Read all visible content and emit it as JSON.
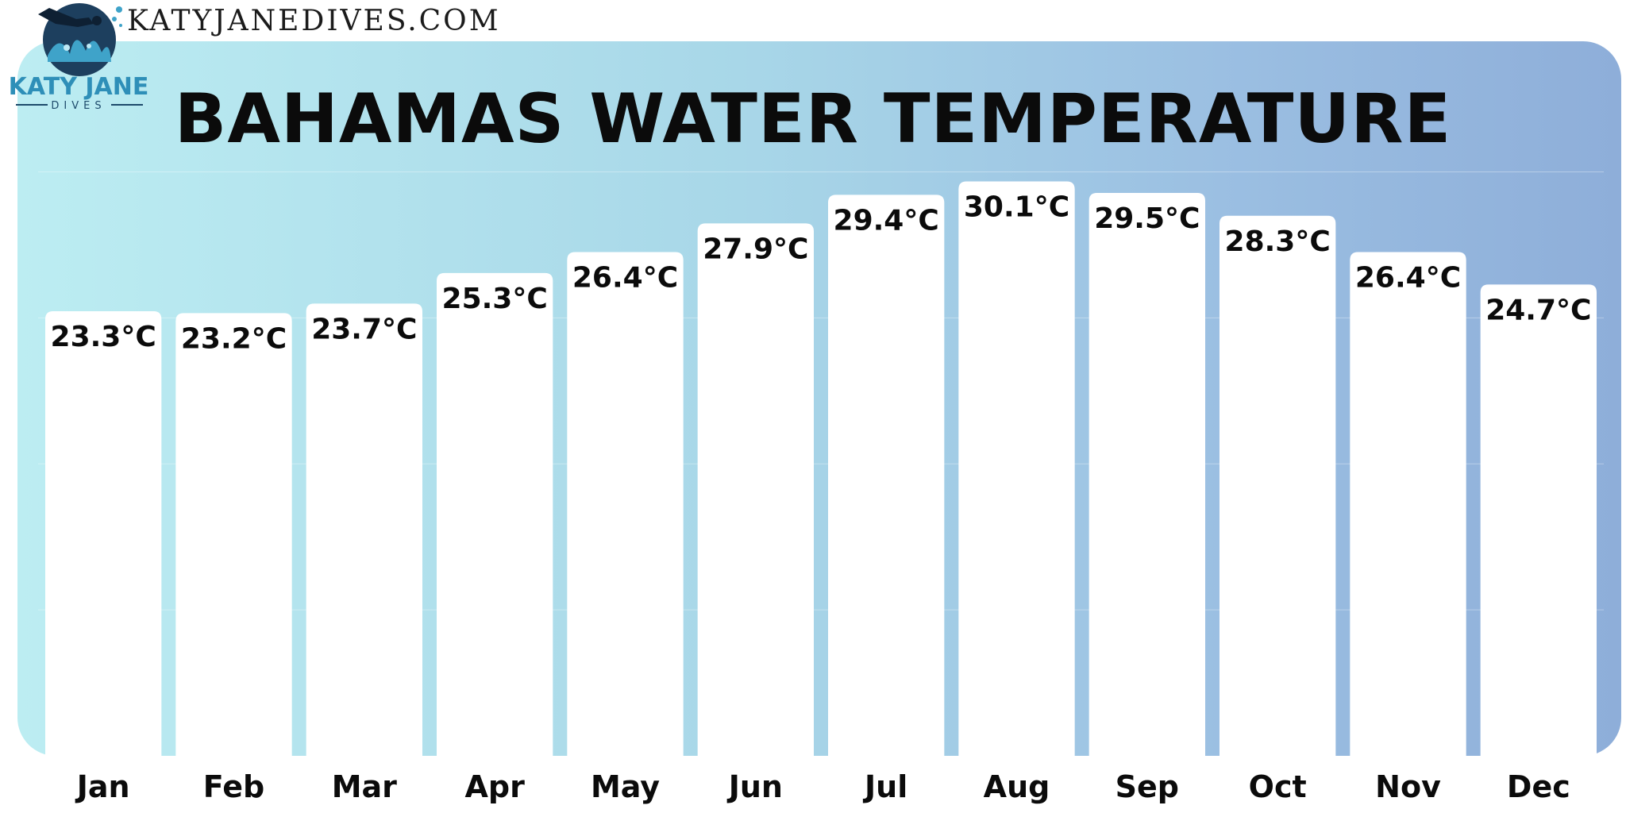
{
  "site": {
    "url": "KATYJANEDIVES.COM"
  },
  "logo": {
    "name": "KATY JANE",
    "sub": "DIVES",
    "icon": "diver-coral-logo-icon"
  },
  "chart_data": {
    "type": "bar",
    "title": "BAHAMAS WATER TEMPERATURE",
    "categories": [
      "Jan",
      "Feb",
      "Mar",
      "Apr",
      "May",
      "Jun",
      "Jul",
      "Aug",
      "Sep",
      "Oct",
      "Nov",
      "Dec"
    ],
    "values": [
      23.3,
      23.2,
      23.7,
      25.3,
      26.4,
      27.9,
      29.4,
      30.1,
      29.5,
      28.3,
      26.4,
      24.7
    ],
    "labels": [
      "23.3°C",
      "23.2°C",
      "23.7°C",
      "25.3°C",
      "26.4°C",
      "27.9°C",
      "29.4°C",
      "30.1°C",
      "29.5°C",
      "28.3°C",
      "26.4°C",
      "24.7°C"
    ],
    "unit": "°C",
    "ylim": [
      0,
      34.2
    ],
    "grid": true,
    "colors": {
      "bar": "#ffffff",
      "panel_start": "#bcedf2",
      "panel_end": "#8eaed9",
      "text": "#0b0b0b"
    }
  }
}
